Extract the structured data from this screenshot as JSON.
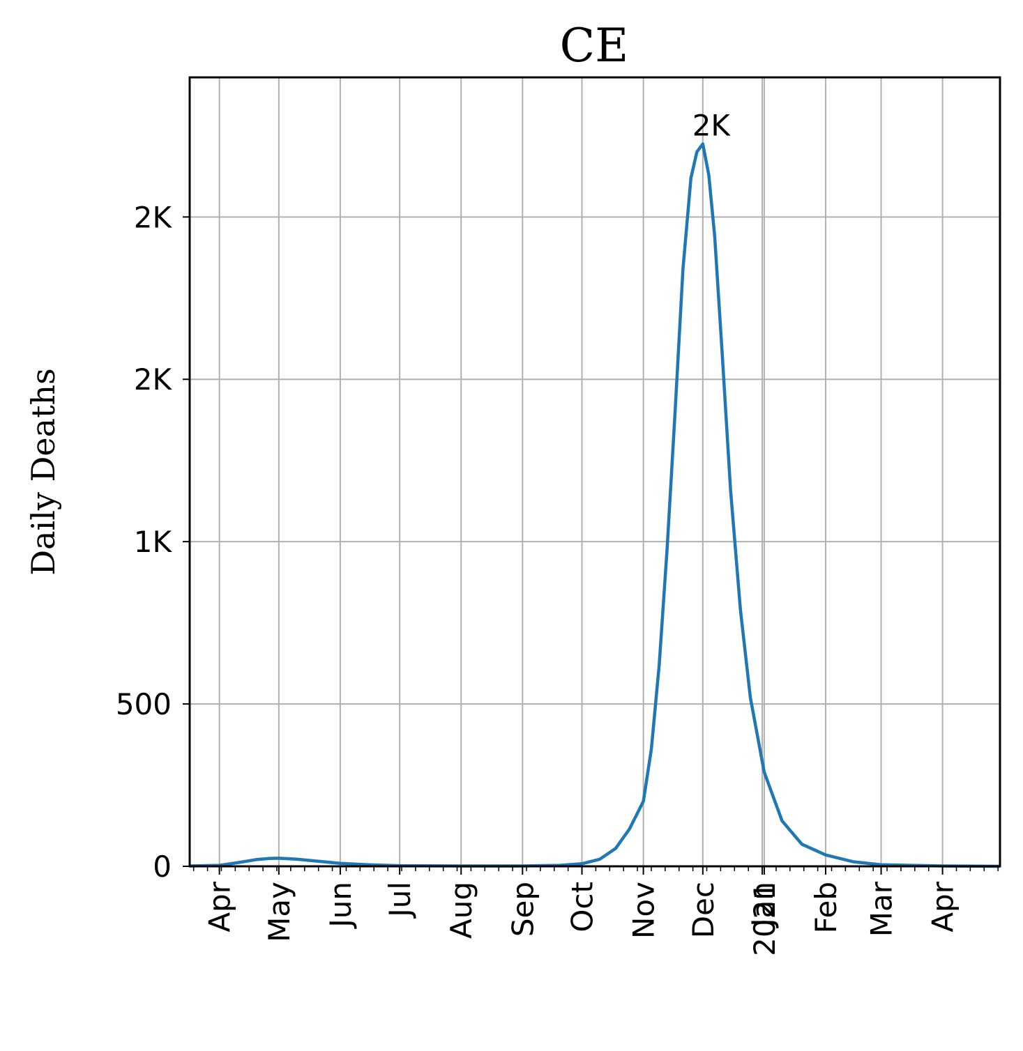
{
  "chart_data": {
    "type": "line",
    "title": "CE",
    "xlabel": "",
    "ylabel": "Daily Deaths",
    "grid": true,
    "line_color": "#1f77b4",
    "xlim": [
      "2020-03-17",
      "2021-04-30"
    ],
    "ylim": [
      0,
      2430
    ],
    "y_ticks": [
      {
        "value": 0,
        "label": "0"
      },
      {
        "value": 500,
        "label": "500"
      },
      {
        "value": 1000,
        "label": "1K"
      },
      {
        "value": 1500,
        "label": "2K"
      },
      {
        "value": 2000,
        "label": "2K"
      }
    ],
    "x_ticks": [
      {
        "date": "2020-04-01",
        "label": "Apr"
      },
      {
        "date": "2020-05-01",
        "label": "May"
      },
      {
        "date": "2020-06-01",
        "label": "Jun"
      },
      {
        "date": "2020-07-01",
        "label": "Jul"
      },
      {
        "date": "2020-08-01",
        "label": "Aug"
      },
      {
        "date": "2020-09-01",
        "label": "Sep"
      },
      {
        "date": "2020-10-01",
        "label": "Oct"
      },
      {
        "date": "2020-11-01",
        "label": "Nov"
      },
      {
        "date": "2020-12-01",
        "label": "Dec"
      },
      {
        "date": "2020-12-31",
        "label": "Jan"
      },
      {
        "date": "2021-01-01",
        "label": "2021"
      },
      {
        "date": "2021-02-01",
        "label": "Feb"
      },
      {
        "date": "2021-03-01",
        "label": "Mar"
      },
      {
        "date": "2021-04-01",
        "label": "Apr"
      }
    ],
    "series": [
      {
        "points": [
          [
            "2020-03-17",
            1
          ],
          [
            "2020-04-01",
            3
          ],
          [
            "2020-04-10",
            11
          ],
          [
            "2020-04-20",
            21
          ],
          [
            "2020-04-26",
            24
          ],
          [
            "2020-05-01",
            25
          ],
          [
            "2020-05-10",
            22
          ],
          [
            "2020-05-20",
            16
          ],
          [
            "2020-06-01",
            9
          ],
          [
            "2020-06-15",
            5
          ],
          [
            "2020-07-01",
            2
          ],
          [
            "2020-08-01",
            1
          ],
          [
            "2020-09-01",
            1
          ],
          [
            "2020-09-20",
            3
          ],
          [
            "2020-10-01",
            8
          ],
          [
            "2020-10-10",
            22
          ],
          [
            "2020-10-18",
            55
          ],
          [
            "2020-10-25",
            115
          ],
          [
            "2020-11-01",
            200
          ],
          [
            "2020-11-05",
            360
          ],
          [
            "2020-11-09",
            620
          ],
          [
            "2020-11-13",
            980
          ],
          [
            "2020-11-17",
            1400
          ],
          [
            "2020-11-21",
            1840
          ],
          [
            "2020-11-25",
            2120
          ],
          [
            "2020-11-28",
            2200
          ],
          [
            "2020-12-01",
            2225
          ],
          [
            "2020-12-04",
            2130
          ],
          [
            "2020-12-07",
            1940
          ],
          [
            "2020-12-11",
            1560
          ],
          [
            "2020-12-15",
            1160
          ],
          [
            "2020-12-20",
            790
          ],
          [
            "2020-12-25",
            520
          ],
          [
            "2021-01-01",
            290
          ],
          [
            "2021-01-10",
            140
          ],
          [
            "2021-01-20",
            68
          ],
          [
            "2021-02-01",
            35
          ],
          [
            "2021-02-15",
            14
          ],
          [
            "2021-03-01",
            5
          ],
          [
            "2021-04-01",
            1
          ],
          [
            "2021-04-30",
            0
          ]
        ]
      }
    ],
    "annotations": [
      {
        "text": "2K",
        "date": "2020-12-01",
        "value": 2225
      }
    ]
  }
}
